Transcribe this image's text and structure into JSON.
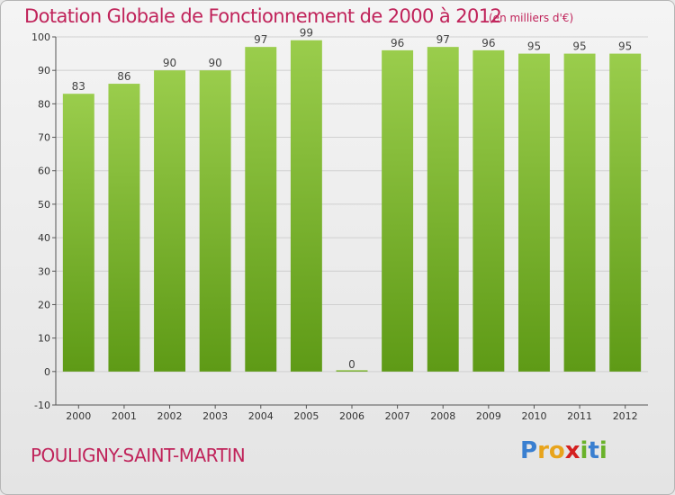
{
  "chart_data": {
    "type": "bar",
    "title": "Dotation Globale de Fonctionnement de 2000 à 2012",
    "unit_label": "(en milliers d'€)",
    "categories": [
      "2000",
      "2001",
      "2002",
      "2003",
      "2004",
      "2005",
      "2006",
      "2007",
      "2008",
      "2009",
      "2010",
      "2011",
      "2012"
    ],
    "values": [
      83,
      86,
      90,
      90,
      97,
      99,
      0,
      96,
      97,
      96,
      95,
      95,
      95
    ],
    "data_labels": [
      "83",
      "86",
      "90",
      "90",
      "97",
      "99",
      "0",
      "96",
      "97",
      "96",
      "95",
      "95",
      "95"
    ],
    "ylim": [
      -10,
      100
    ],
    "yticks": [
      -10,
      0,
      10,
      20,
      30,
      40,
      50,
      60,
      70,
      80,
      90,
      100
    ],
    "ytick_labels": [
      "-10",
      "0",
      "10",
      "20",
      "30",
      "40",
      "50",
      "60",
      "70",
      "80",
      "90",
      "100"
    ],
    "grid": true,
    "bar_color_top": "#9acd4c",
    "bar_color_bottom": "#5e9a16"
  },
  "commune_name": "POULIGNY-SAINT-MARTIN",
  "logo": {
    "letters": [
      "P",
      "r",
      "o",
      "x",
      "i",
      "t",
      "i"
    ],
    "colors": [
      "#3a7fd0",
      "#e8a41c",
      "#e8a41c",
      "#d42020",
      "#6ab22a",
      "#3a7fd0",
      "#6ab22a"
    ]
  },
  "colors": {
    "accent": "#c0235a",
    "grid": "#d0d0d0"
  }
}
